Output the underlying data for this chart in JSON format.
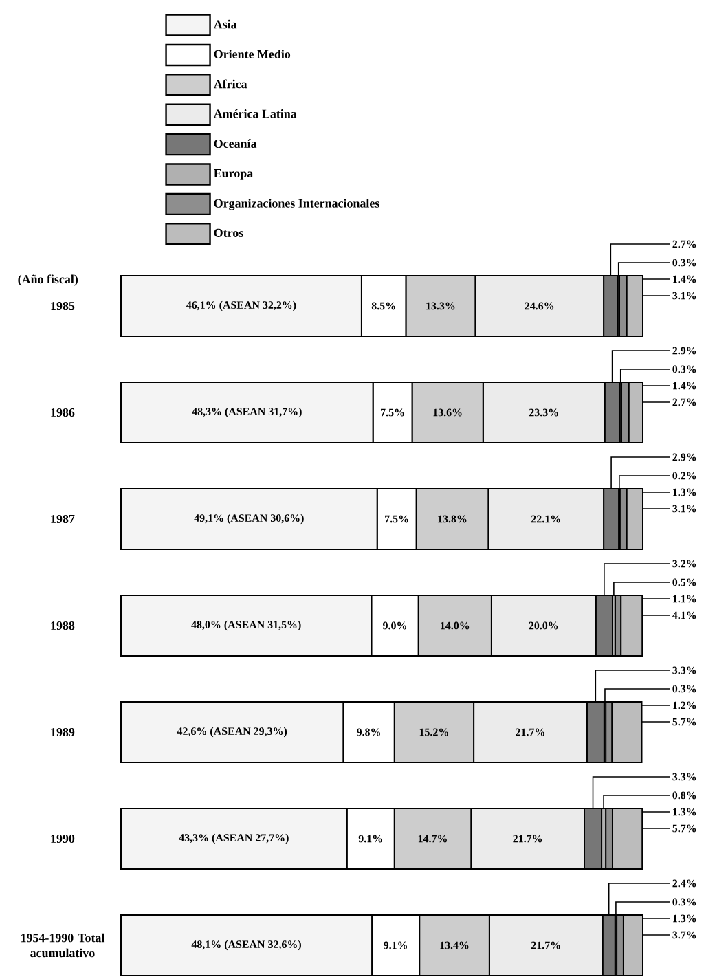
{
  "chart_data": {
    "type": "bar",
    "orientation": "horizontal",
    "stacked": true,
    "ylabel": "(Año fiscal)",
    "legend": "top left",
    "tick_labels": "y",
    "xlim": [
      0,
      100
    ],
    "categories": [
      "1985",
      "1986",
      "1987",
      "1988",
      "1989",
      "1990",
      "1954-1990 Total acumulativo"
    ],
    "series": [
      {
        "name": "Asia",
        "color": "#f4f4f4",
        "values": [
          46.1,
          48.3,
          49.1,
          48.0,
          42.6,
          43.3,
          48.1
        ],
        "value_labels": [
          "46,1% (ASEAN 32,2%)",
          "48,3% (ASEAN 31,7%)",
          "49,1% (ASEAN 30,6%)",
          "48,0% (ASEAN 31,5%)",
          "42,6% (ASEAN 29,3%)",
          "43,3% (ASEAN 27,7%)",
          "48,1% (ASEAN 32,6%)"
        ]
      },
      {
        "name": "Oriente Medio",
        "color": "#ffffff",
        "values": [
          8.5,
          7.5,
          7.5,
          9.0,
          9.8,
          9.1,
          9.1
        ],
        "value_labels": [
          "8.5%",
          "7.5%",
          "7.5%",
          "9.0%",
          "9.8%",
          "9.1%",
          "9.1%"
        ]
      },
      {
        "name": "Africa",
        "color": "#cdcdcd",
        "values": [
          13.3,
          13.6,
          13.8,
          14.0,
          15.2,
          14.7,
          13.4
        ],
        "value_labels": [
          "13.3%",
          "13.6%",
          "13.8%",
          "14.0%",
          "15.2%",
          "14.7%",
          "13.4%"
        ]
      },
      {
        "name": "América Latina",
        "color": "#ebebeb",
        "values": [
          24.6,
          23.3,
          22.1,
          20.0,
          21.7,
          21.7,
          21.7
        ],
        "value_labels": [
          "24.6%",
          "23.3%",
          "22.1%",
          "20.0%",
          "21.7%",
          "21.7%",
          "21.7%"
        ]
      },
      {
        "name": "Oceanía",
        "color": "#777777",
        "values": [
          2.7,
          2.9,
          2.9,
          3.2,
          3.3,
          3.3,
          2.4
        ],
        "value_labels": [
          "2.7%",
          "2.9%",
          "2.9%",
          "3.2%",
          "3.3%",
          "3.3%",
          "2.4%"
        ]
      },
      {
        "name": "Europa",
        "color": "#b0b0b0",
        "values": [
          0.3,
          0.3,
          0.2,
          0.5,
          0.3,
          0.8,
          0.3
        ],
        "value_labels": [
          "0.3%",
          "0.3%",
          "0.2%",
          "0.5%",
          "0.3%",
          "0.8%",
          "0.3%"
        ]
      },
      {
        "name": "Organizaciones Internacionales",
        "color": "#8e8e8e",
        "values": [
          1.4,
          1.4,
          1.3,
          1.1,
          1.2,
          1.3,
          1.3
        ],
        "value_labels": [
          "1.4%",
          "1.4%",
          "1.3%",
          "1.1%",
          "1.2%",
          "1.3%",
          "1.3%"
        ]
      },
      {
        "name": "Otros",
        "color": "#bcbcbc",
        "values": [
          3.1,
          2.7,
          3.1,
          4.1,
          5.7,
          5.7,
          3.7
        ],
        "value_labels": [
          "3.1%",
          "2.7%",
          "3.1%",
          "4.1%",
          "5.7%",
          "5.7%",
          "3.7%"
        ]
      }
    ]
  }
}
